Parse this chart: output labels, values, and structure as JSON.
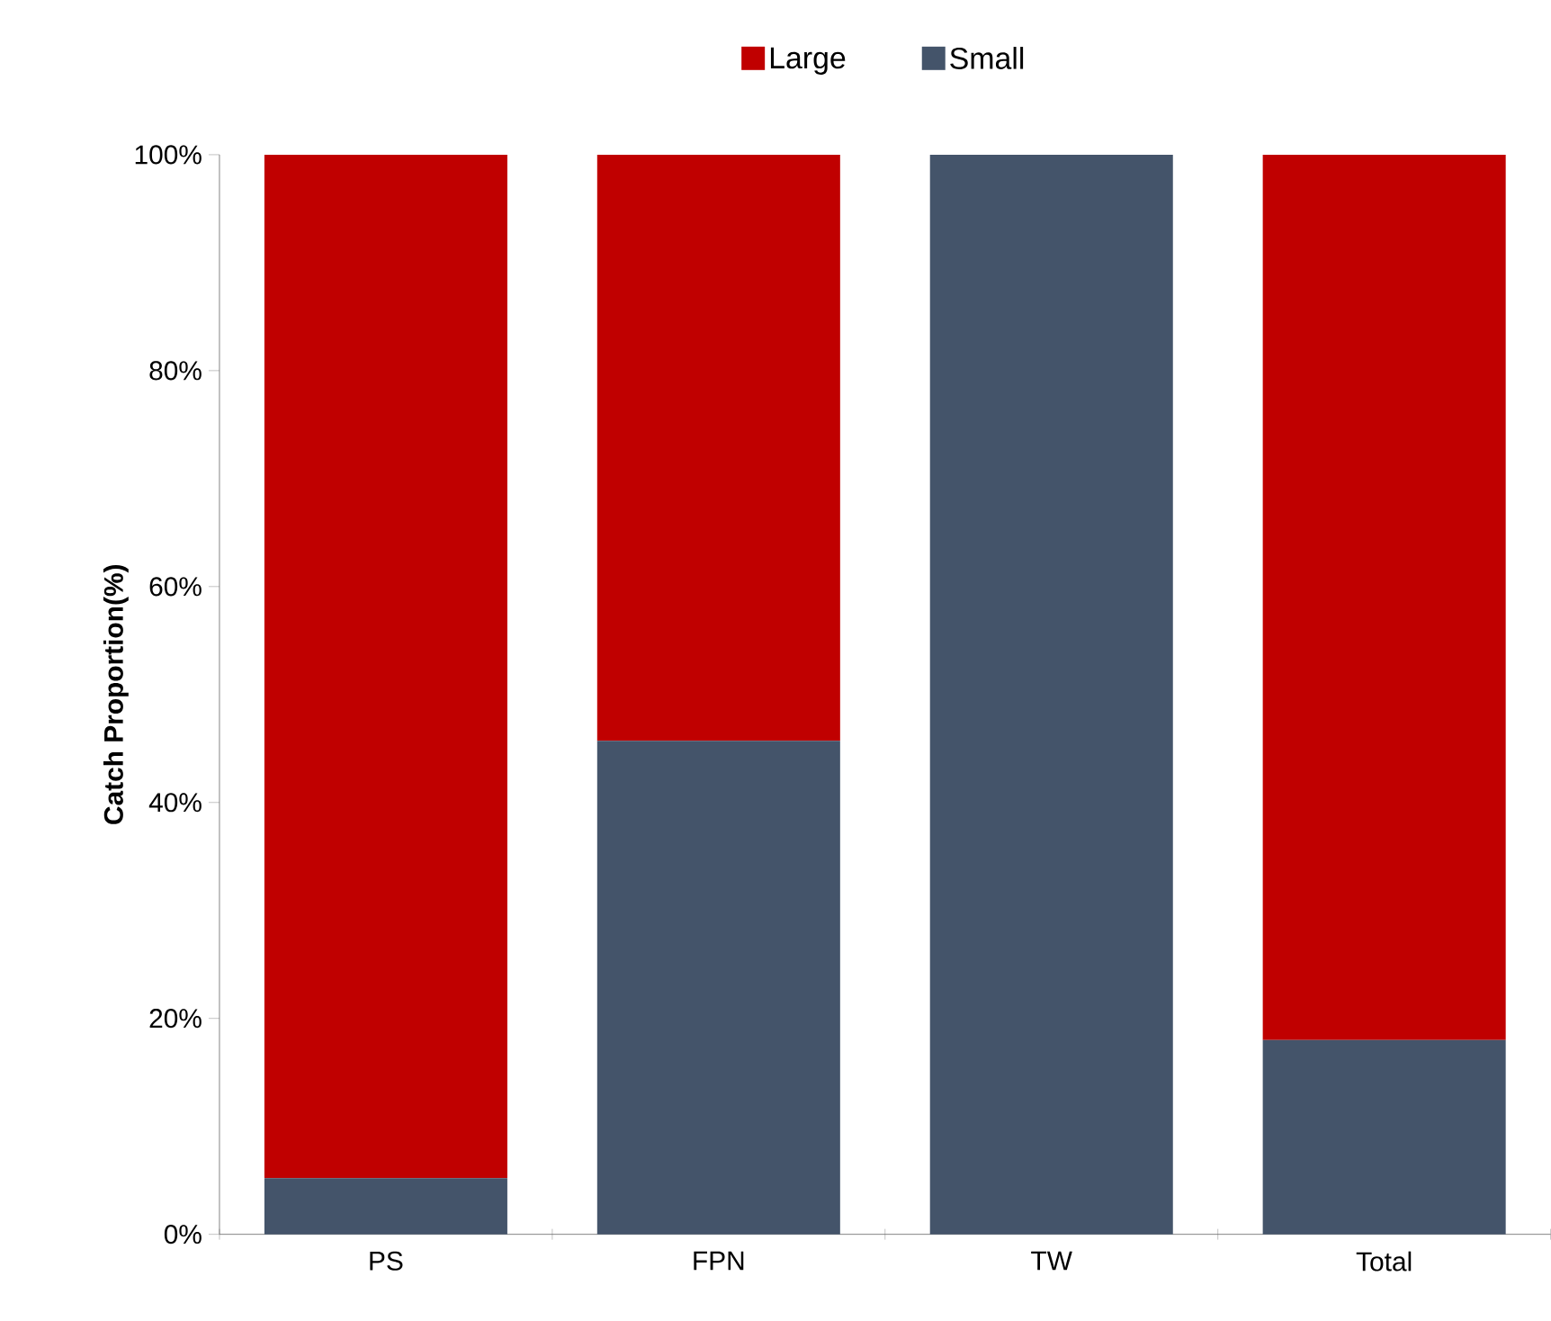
{
  "chart_data": {
    "type": "bar",
    "stacked": true,
    "ylabel": "Catch Proportion(%)",
    "categories": [
      "PS",
      "FPN",
      "TW",
      "Total"
    ],
    "series": [
      {
        "name": "Small",
        "color": "#44546a",
        "values": [
          5.2,
          45.7,
          100,
          18
        ]
      },
      {
        "name": "Large",
        "color": "#c00000",
        "values": [
          94.8,
          54.3,
          0,
          82
        ]
      }
    ],
    "ylim": [
      0,
      100
    ],
    "yticks": [
      {
        "value": 0,
        "label": "0%"
      },
      {
        "value": 20,
        "label": "20%"
      },
      {
        "value": 40,
        "label": "40%"
      },
      {
        "value": 60,
        "label": "60%"
      },
      {
        "value": 80,
        "label": "80%"
      },
      {
        "value": 100,
        "label": "100%"
      }
    ],
    "legend": "top",
    "grid": false
  }
}
